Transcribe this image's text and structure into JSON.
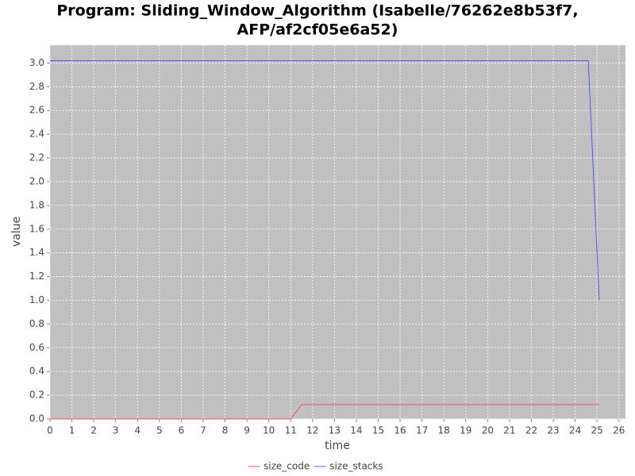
{
  "chart_data": {
    "type": "line",
    "title": [
      "Program: Sliding_Window_Algorithm (Isabelle/76262e8b53f7,",
      "AFP/af2cf05e6a52)"
    ],
    "x_label": "time",
    "y_label": "value",
    "x": [
      0,
      11.0,
      11.5,
      24.6,
      25.1
    ],
    "series": [
      {
        "name": "size_code",
        "color": "#ee5555",
        "values": [
          0,
          0,
          0.12,
          0.12,
          0.12
        ]
      },
      {
        "name": "size_stacks",
        "color": "#5555ee",
        "values": [
          3.02,
          3.02,
          3.02,
          3.02,
          1.0
        ]
      }
    ],
    "xlim": [
      0,
      26.3
    ],
    "xticks": [
      0,
      1,
      2,
      3,
      4,
      5,
      6,
      7,
      8,
      9,
      10,
      11,
      12,
      13,
      14,
      15,
      16,
      17,
      18,
      19,
      20,
      21,
      22,
      23,
      24,
      25,
      26
    ],
    "ylim": [
      0,
      3.15
    ],
    "yticks": [
      {
        "value": 0,
        "label": "0.0"
      },
      0.2,
      0.4,
      0.6,
      0.8,
      {
        "value": 1,
        "label": "1.0"
      },
      1.2,
      1.4,
      1.6,
      1.8,
      {
        "value": 2,
        "label": "2.0"
      },
      2.2,
      2.4,
      2.6,
      2.8,
      {
        "value": 3,
        "label": "3.0"
      }
    ],
    "grid": true,
    "legend": "bottom"
  }
}
